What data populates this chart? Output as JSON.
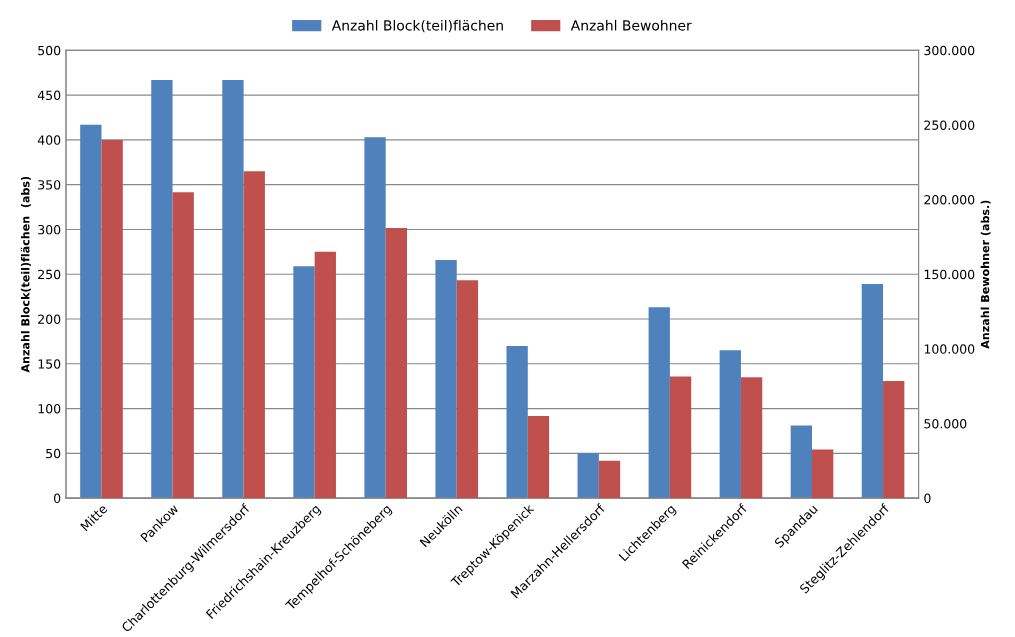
{
  "chart_data": {
    "type": "bar",
    "categories": [
      "Mitte",
      "Pankow",
      "Charlottenburg-Wilmersdorf",
      "Friedrichshain-Kreuzberg",
      "Tempelhof-Schöneberg",
      "Neukölln",
      "Treptow-Köpenick",
      "Marzahn-Hellersdorf",
      "Lichtenberg",
      "Reinickendorf",
      "Spandau",
      "Steglitz-Zehlendorf"
    ],
    "series": [
      {
        "name": "Anzahl Block(teil)flächen",
        "color": "#4f81bd",
        "values": [
          417,
          467,
          467,
          259,
          403,
          266,
          170,
          50,
          213,
          165,
          81,
          239
        ]
      },
      {
        "name": "Anzahl Bewohner",
        "color": "#c0504d",
        "axis": "y2",
        "values": [
          240000,
          205000,
          219000,
          165000,
          181000,
          146000,
          55000,
          25000,
          81500,
          81000,
          32500,
          78500
        ]
      }
    ],
    "ylabel": "Anzahl Block(teil)flächen  (abs)",
    "y2label": "Anzahl Bewohner (abs.)",
    "ylim": [
      0,
      500
    ],
    "yticks": [
      0,
      50,
      100,
      150,
      200,
      250,
      300,
      350,
      400,
      450,
      500
    ],
    "y2lim": [
      0,
      300000
    ],
    "y2ticks": [
      {
        "value": 0,
        "label": "0"
      },
      {
        "value": 50000,
        "label": "50.000"
      },
      {
        "value": 100000,
        "label": "100.000"
      },
      {
        "value": 150000,
        "label": "150.000"
      },
      {
        "value": 200000,
        "label": "200.000"
      },
      {
        "value": 250000,
        "label": "250.000"
      },
      {
        "value": 300000,
        "label": "300.000"
      }
    ],
    "grid": "y",
    "legend": "top"
  }
}
